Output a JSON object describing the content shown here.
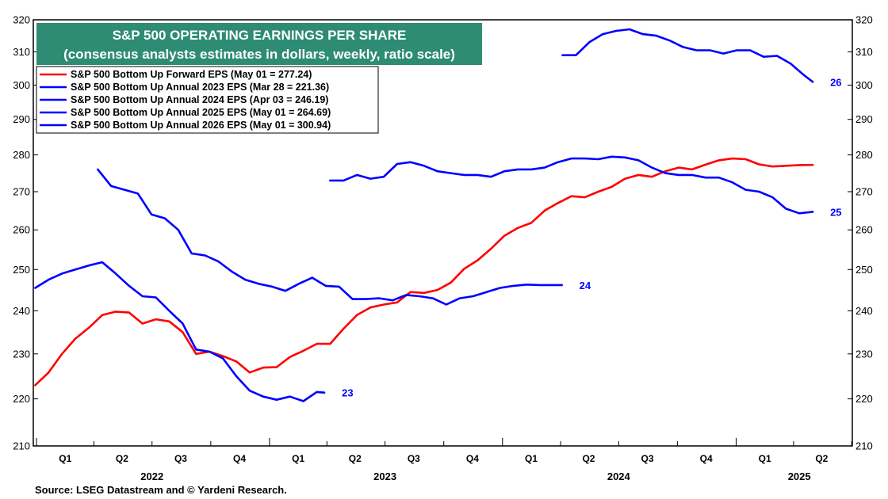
{
  "chart_data": {
    "type": "line",
    "title": "S&P 500 OPERATING EARNINGS PER SHARE",
    "subtitle": "(consensus analysts estimates in dollars, weekly, ratio scale)",
    "ylim": [
      210,
      320
    ],
    "yticks": [
      210,
      220,
      230,
      240,
      250,
      260,
      270,
      280,
      290,
      300,
      310,
      320
    ],
    "y_scale": "ratio",
    "xlim": [
      "2021-12-27",
      "2025-07-02"
    ],
    "quarters": [
      {
        "label": "Q1",
        "date": "2022-02-15"
      },
      {
        "label": "Q2",
        "date": "2022-05-15"
      },
      {
        "label": "Q3",
        "date": "2022-08-15"
      },
      {
        "label": "Q4",
        "date": "2022-11-15"
      },
      {
        "label": "Q1",
        "date": "2023-02-15"
      },
      {
        "label": "Q2",
        "date": "2023-05-15"
      },
      {
        "label": "Q3",
        "date": "2023-08-15"
      },
      {
        "label": "Q4",
        "date": "2023-11-15"
      },
      {
        "label": "Q1",
        "date": "2024-02-15"
      },
      {
        "label": "Q2",
        "date": "2024-05-15"
      },
      {
        "label": "Q3",
        "date": "2024-08-15"
      },
      {
        "label": "Q4",
        "date": "2024-11-15"
      },
      {
        "label": "Q1",
        "date": "2025-02-15"
      },
      {
        "label": "Q2",
        "date": "2025-05-15"
      }
    ],
    "years": [
      {
        "label": "2022",
        "date": "2022-07-01"
      },
      {
        "label": "2023",
        "date": "2023-07-01"
      },
      {
        "label": "2024",
        "date": "2024-07-01"
      },
      {
        "label": "2025",
        "date": "2025-04-10"
      }
    ],
    "series": [
      {
        "name": "S&P 500 Bottom Up Forward EPS (May 01 = 277.24)",
        "color": "#ff0000",
        "end_label": "",
        "x": [
          "2021-12-30",
          "2022-01-20",
          "2022-02-10",
          "2022-03-03",
          "2022-03-24",
          "2022-04-14",
          "2022-05-05",
          "2022-05-26",
          "2022-06-16",
          "2022-07-07",
          "2022-07-28",
          "2022-08-18",
          "2022-09-08",
          "2022-09-29",
          "2022-10-20",
          "2022-11-10",
          "2022-12-01",
          "2022-12-22",
          "2023-01-12",
          "2023-02-02",
          "2023-02-23",
          "2023-03-16",
          "2023-04-06",
          "2023-04-27",
          "2023-05-18",
          "2023-06-08",
          "2023-06-29",
          "2023-07-20",
          "2023-08-10",
          "2023-08-31",
          "2023-09-21",
          "2023-10-12",
          "2023-11-02",
          "2023-11-23",
          "2023-12-14",
          "2024-01-04",
          "2024-01-25",
          "2024-02-15",
          "2024-03-07",
          "2024-03-28",
          "2024-04-18",
          "2024-05-09",
          "2024-05-30",
          "2024-06-20",
          "2024-07-11",
          "2024-08-01",
          "2024-08-22",
          "2024-09-12",
          "2024-10-03",
          "2024-10-24",
          "2024-11-14",
          "2024-12-05",
          "2024-12-26",
          "2025-01-16",
          "2025-02-06",
          "2025-02-27",
          "2025-03-20",
          "2025-04-10",
          "2025-05-01"
        ],
        "y": [
          223.0,
          225.8,
          230.0,
          233.5,
          236.0,
          239.0,
          239.8,
          239.6,
          237.0,
          238.0,
          237.5,
          235.0,
          230.0,
          230.5,
          229.5,
          228.3,
          225.8,
          226.9,
          227.0,
          229.3,
          230.7,
          232.3,
          232.3,
          235.8,
          239.0,
          240.8,
          241.5,
          242.0,
          244.5,
          244.3,
          245.0,
          246.8,
          250.2,
          252.3,
          255.2,
          258.5,
          260.5,
          261.8,
          265.0,
          267.0,
          268.8,
          268.5,
          270.0,
          271.3,
          273.5,
          274.5,
          274.0,
          275.5,
          276.5,
          276.0,
          277.3,
          278.5,
          279.0,
          278.8,
          277.4,
          276.8,
          277.0,
          277.2,
          277.24
        ]
      },
      {
        "name": "S&P 500 Bottom Up Annual 2023 EPS (Mar 28 = 221.36)",
        "color": "#0000ff",
        "end_label": "23",
        "x": [
          "2021-12-30",
          "2022-01-20",
          "2022-02-10",
          "2022-03-03",
          "2022-03-24",
          "2022-04-14",
          "2022-05-05",
          "2022-05-26",
          "2022-06-16",
          "2022-07-07",
          "2022-07-28",
          "2022-08-18",
          "2022-09-08",
          "2022-09-29",
          "2022-10-20",
          "2022-11-10",
          "2022-12-01",
          "2022-12-22",
          "2023-01-12",
          "2023-02-02",
          "2023-02-23",
          "2023-03-16",
          "2023-03-28"
        ],
        "y": [
          245.5,
          247.5,
          249.0,
          250.0,
          251.0,
          251.8,
          249.0,
          246.0,
          243.5,
          243.2,
          240.0,
          237.0,
          231.0,
          230.5,
          229.0,
          225.0,
          221.8,
          220.5,
          219.8,
          220.5,
          219.5,
          221.5,
          221.36
        ]
      },
      {
        "name": "S&P 500 Bottom Up Annual 2024 EPS (Apr 03 = 246.19)",
        "color": "#0000ff",
        "end_label": "24",
        "x": [
          "2022-04-07",
          "2022-04-28",
          "2022-05-19",
          "2022-06-09",
          "2022-06-30",
          "2022-07-21",
          "2022-08-11",
          "2022-09-01",
          "2022-09-22",
          "2022-10-13",
          "2022-11-03",
          "2022-11-24",
          "2022-12-15",
          "2023-01-05",
          "2023-01-26",
          "2023-02-16",
          "2023-03-09",
          "2023-03-30",
          "2023-04-20",
          "2023-05-11",
          "2023-06-01",
          "2023-06-22",
          "2023-07-13",
          "2023-08-03",
          "2023-08-24",
          "2023-09-14",
          "2023-10-05",
          "2023-10-26",
          "2023-11-16",
          "2023-12-07",
          "2023-12-28",
          "2024-01-18",
          "2024-02-08",
          "2024-02-29",
          "2024-03-21",
          "2024-04-03"
        ],
        "y": [
          276.0,
          271.5,
          270.5,
          269.5,
          264.0,
          263.0,
          260.0,
          254.0,
          253.5,
          252.0,
          249.5,
          247.5,
          246.5,
          245.8,
          244.8,
          246.5,
          248.0,
          246.0,
          245.8,
          242.8,
          242.8,
          243.0,
          242.5,
          243.8,
          243.5,
          243.0,
          241.5,
          243.0,
          243.5,
          244.5,
          245.5,
          246.0,
          246.3,
          246.2,
          246.2,
          246.19
        ]
      },
      {
        "name": "S&P 500 Bottom Up Annual 2025 EPS (May 01 = 264.69)",
        "color": "#0000ff",
        "end_label": "25",
        "x": [
          "2023-04-06",
          "2023-04-27",
          "2023-05-18",
          "2023-06-08",
          "2023-06-29",
          "2023-07-20",
          "2023-08-10",
          "2023-08-31",
          "2023-09-21",
          "2023-10-12",
          "2023-11-02",
          "2023-11-23",
          "2023-12-14",
          "2024-01-04",
          "2024-01-25",
          "2024-02-15",
          "2024-03-07",
          "2024-03-28",
          "2024-04-18",
          "2024-05-09",
          "2024-05-30",
          "2024-06-20",
          "2024-07-11",
          "2024-08-01",
          "2024-08-22",
          "2024-09-12",
          "2024-10-03",
          "2024-10-24",
          "2024-11-14",
          "2024-12-05",
          "2024-12-26",
          "2025-01-16",
          "2025-02-06",
          "2025-02-27",
          "2025-03-20",
          "2025-04-10",
          "2025-05-01"
        ],
        "y": [
          273.0,
          273.0,
          274.5,
          273.5,
          274.0,
          277.5,
          278.0,
          277.0,
          275.5,
          275.0,
          274.5,
          274.5,
          274.0,
          275.5,
          276.0,
          276.0,
          276.5,
          278.0,
          279.0,
          279.0,
          278.8,
          279.5,
          279.3,
          278.5,
          276.5,
          275.0,
          274.5,
          274.5,
          273.8,
          273.8,
          272.5,
          270.5,
          270.0,
          268.5,
          265.5,
          264.3,
          264.69
        ]
      },
      {
        "name": "S&P 500 Bottom Up Annual 2026 EPS (May 01 = 300.94)",
        "color": "#0000ff",
        "end_label": "26",
        "x": [
          "2024-04-04",
          "2024-04-25",
          "2024-05-16",
          "2024-06-06",
          "2024-06-27",
          "2024-07-18",
          "2024-08-08",
          "2024-08-29",
          "2024-09-19",
          "2024-10-10",
          "2024-10-31",
          "2024-11-21",
          "2024-12-12",
          "2025-01-02",
          "2025-01-23",
          "2025-02-13",
          "2025-03-06",
          "2025-03-27",
          "2025-04-17",
          "2025-05-01"
        ],
        "y": [
          309.0,
          309.0,
          313.0,
          315.5,
          316.5,
          317.0,
          315.5,
          315.0,
          313.5,
          311.5,
          310.5,
          310.5,
          309.5,
          310.5,
          310.5,
          308.5,
          308.8,
          306.5,
          303.0,
          300.94
        ]
      }
    ],
    "legend_position": "top-left",
    "grid": false
  },
  "source": "Source: LSEG Datastream and © Yardeni Research."
}
